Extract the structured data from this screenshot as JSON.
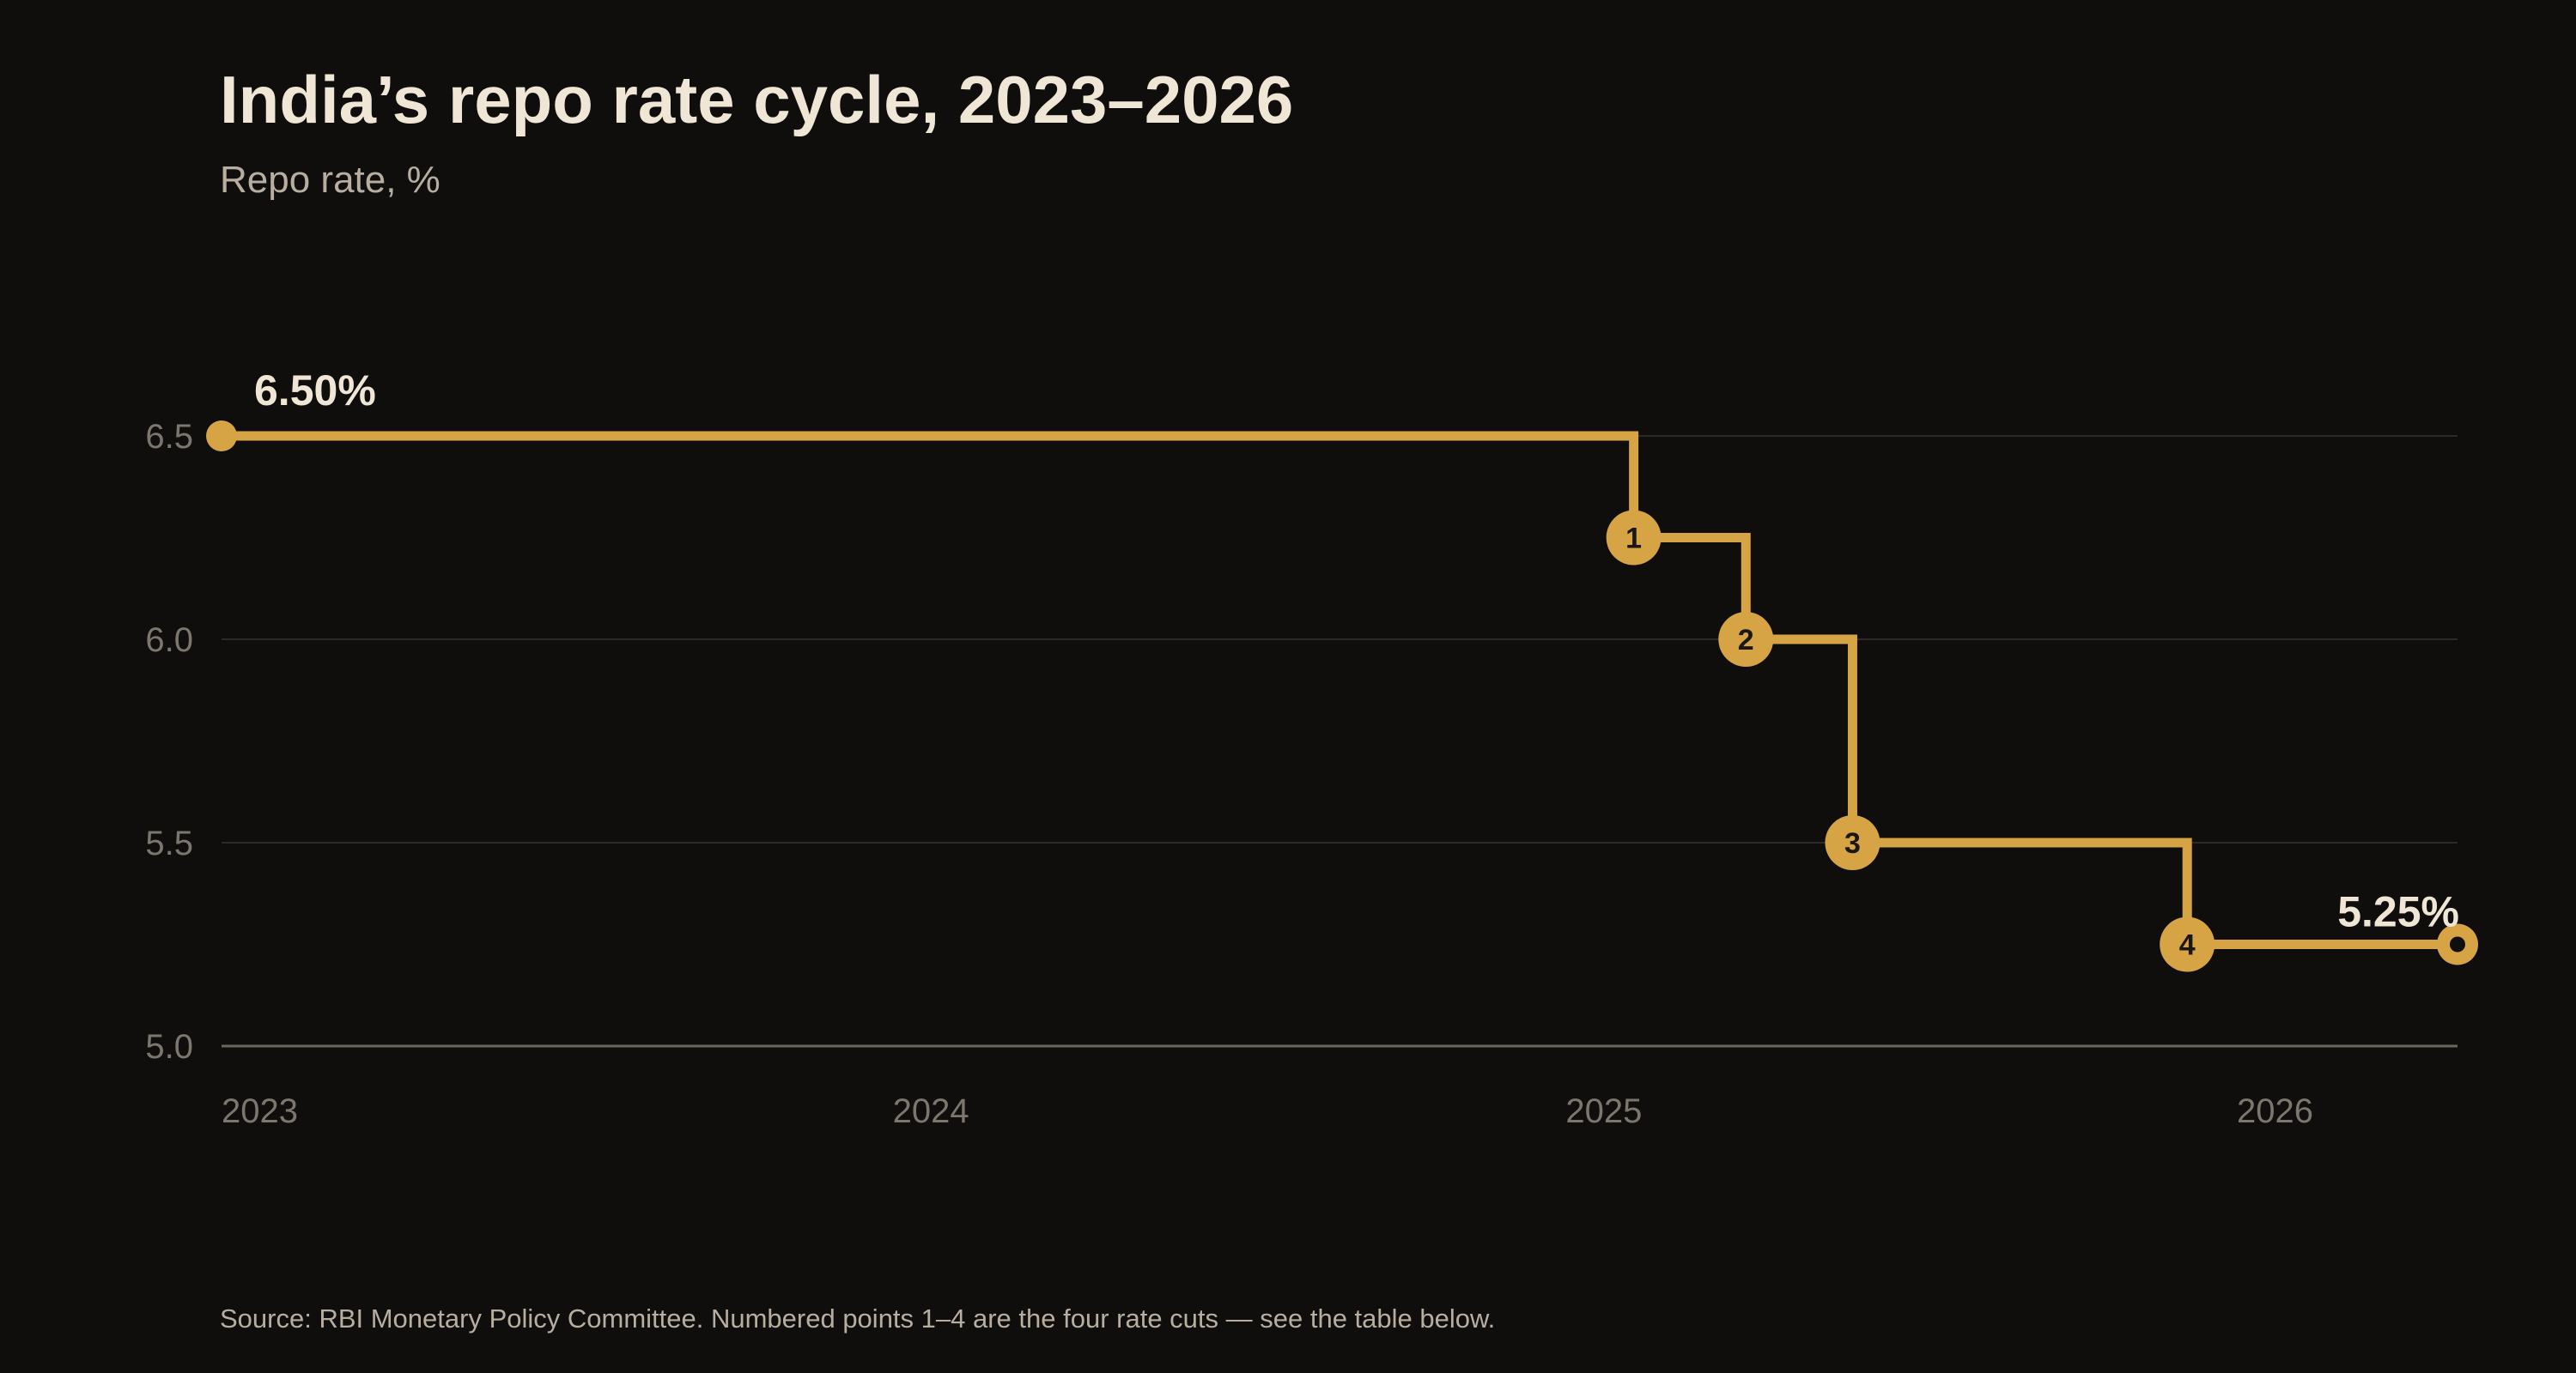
{
  "chart_data": {
    "type": "line",
    "title": "India’s repo rate cycle, 2023–2026",
    "subtitle": "Repo rate, %",
    "line_style": "step",
    "x_ticks": [
      {
        "label": "2023",
        "value": "2023-01-01"
      },
      {
        "label": "2024",
        "value": "2024-01-01"
      },
      {
        "label": "2025",
        "value": "2025-01-01"
      },
      {
        "label": "2026",
        "value": "2026-01-01"
      }
    ],
    "y_ticks": [
      {
        "label": "6.5",
        "value": 6.5
      },
      {
        "label": "6.0",
        "value": 6.0
      },
      {
        "label": "5.5",
        "value": 5.5
      },
      {
        "label": "5.0",
        "value": 5.0
      }
    ],
    "xlim": [
      "2023-01-01",
      "2026-05-01"
    ],
    "ylim": [
      5.0,
      6.5
    ],
    "grid": true,
    "series": [
      {
        "color": "#d6a444",
        "points": [
          {
            "x": "2023-01-01",
            "y": 6.5
          },
          {
            "x": "2025-02-07",
            "y": 6.25
          },
          {
            "x": "2025-04-09",
            "y": 6.0
          },
          {
            "x": "2025-06-06",
            "y": 5.5
          },
          {
            "x": "2025-12-05",
            "y": 5.25
          },
          {
            "x": "2026-05-01",
            "y": 5.25
          }
        ]
      }
    ],
    "cut_markers": [
      {
        "label": "1",
        "x": "2025-02-07",
        "y": 6.25
      },
      {
        "label": "2",
        "x": "2025-04-09",
        "y": 6.0
      },
      {
        "label": "3",
        "x": "2025-06-06",
        "y": 5.5
      },
      {
        "label": "4",
        "x": "2025-12-05",
        "y": 5.25
      }
    ],
    "start_label": "6.50%",
    "end_label": "5.25%",
    "source": "Source: RBI Monetary Policy Committee. Numbered points 1–4 are the four rate cuts — see the table below."
  },
  "colors": {
    "background": "#0f0e0d",
    "accent": "#d6a444",
    "title": "#efe6d6",
    "muted": "#b7aea0",
    "tick": "#7c766d",
    "grid": "#2c2a27"
  }
}
